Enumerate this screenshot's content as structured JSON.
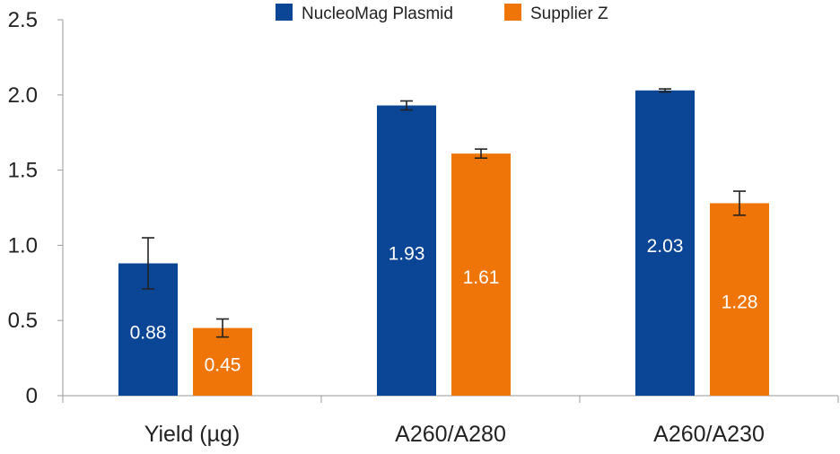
{
  "chart_data": {
    "type": "bar",
    "categories": [
      "Yield (µg)",
      "A260/A280",
      "A260/A230"
    ],
    "series": [
      {
        "name": "NucleoMag Plasmid",
        "color": "#0b4596",
        "values": [
          0.88,
          1.93,
          2.03
        ],
        "error": [
          0.17,
          0.03,
          0.01
        ],
        "labels": [
          "0.88",
          "1.93",
          "2.03"
        ]
      },
      {
        "name": "Supplier Z",
        "color": "#ef7508",
        "values": [
          0.45,
          1.61,
          1.28
        ],
        "error": [
          0.06,
          0.03,
          0.08
        ],
        "labels": [
          "0.45",
          "1.61",
          "1.28"
        ]
      }
    ],
    "ylim": [
      0,
      2.5
    ],
    "yticks": [
      0,
      0.5,
      1.0,
      1.5,
      2.0,
      2.5
    ],
    "ytick_labels": [
      "0",
      "0.5",
      "1.0",
      "1.5",
      "2.0",
      "2.5"
    ],
    "legend": "top-center",
    "grid": false
  }
}
